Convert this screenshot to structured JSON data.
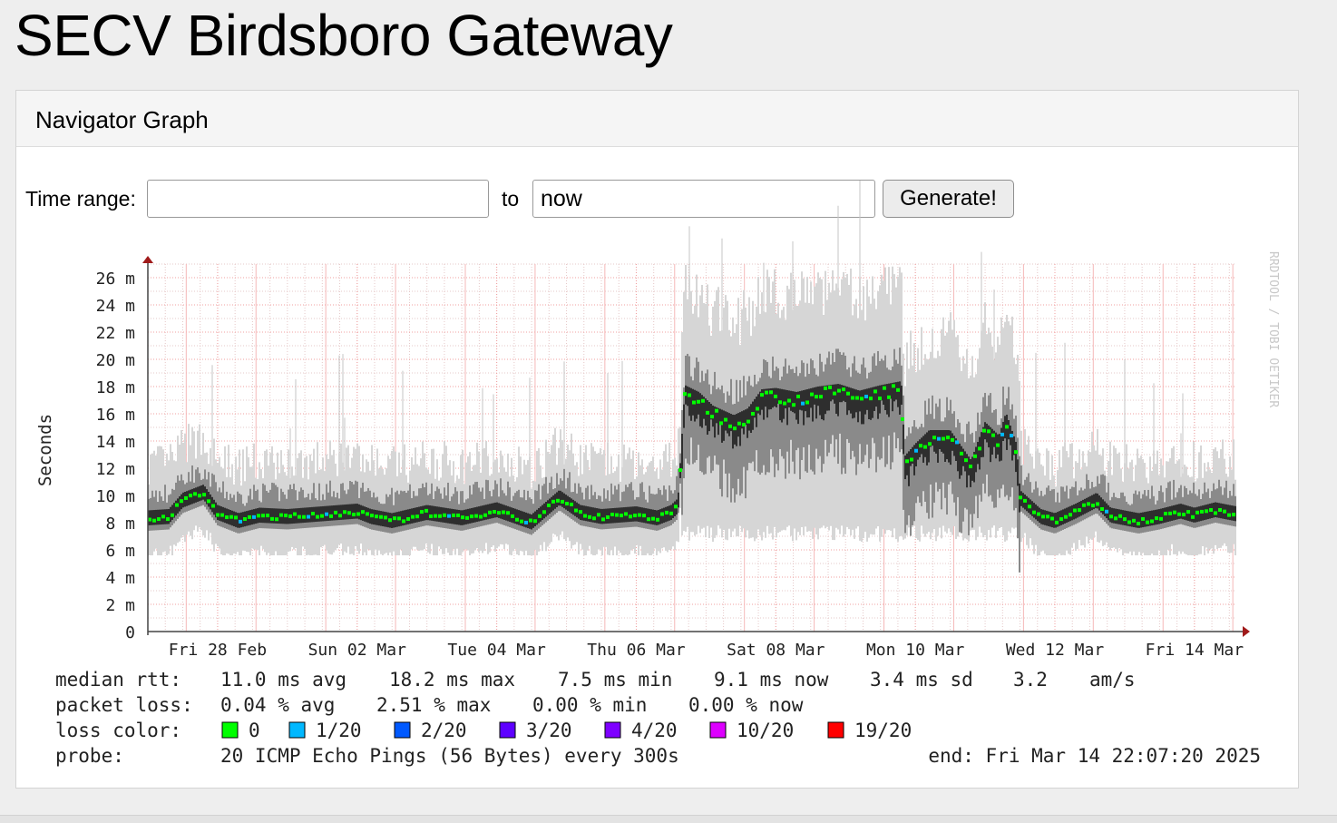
{
  "page": {
    "title": "SECV Birdsboro Gateway"
  },
  "panel": {
    "title": "Navigator Graph"
  },
  "range": {
    "label": "Time range:",
    "start_value": "",
    "to_label": "to",
    "end_value": "now",
    "button_label": "Generate!"
  },
  "chart_data": {
    "type": "line",
    "ylabel": "Seconds",
    "watermark": "RRDTOOL / TOBI OETIKER",
    "ylim": [
      0,
      27
    ],
    "yticks": [
      {
        "value": 0,
        "label": "0"
      },
      {
        "value": 2,
        "label": "2 m"
      },
      {
        "value": 4,
        "label": "4 m"
      },
      {
        "value": 6,
        "label": "6 m"
      },
      {
        "value": 8,
        "label": "8 m"
      },
      {
        "value": 10,
        "label": "10 m"
      },
      {
        "value": 12,
        "label": "12 m"
      },
      {
        "value": 14,
        "label": "14 m"
      },
      {
        "value": 16,
        "label": "16 m"
      },
      {
        "value": 18,
        "label": "18 m"
      },
      {
        "value": 20,
        "label": "20 m"
      },
      {
        "value": 22,
        "label": "22 m"
      },
      {
        "value": 24,
        "label": "24 m"
      },
      {
        "value": 26,
        "label": "26 m"
      }
    ],
    "xlim": [
      0,
      15.6
    ],
    "xticks": [
      {
        "value": 1,
        "label": "Fri 28 Feb"
      },
      {
        "value": 3,
        "label": "Sun 02 Mar"
      },
      {
        "value": 5,
        "label": "Tue 04 Mar"
      },
      {
        "value": 7,
        "label": "Thu 06 Mar"
      },
      {
        "value": 9,
        "label": "Sat 08 Mar"
      },
      {
        "value": 11,
        "label": "Mon 10 Mar"
      },
      {
        "value": 13,
        "label": "Wed 12 Mar"
      },
      {
        "value": 15,
        "label": "Fri 14 Mar"
      }
    ],
    "median_series": {
      "name": "median rtt",
      "points": [
        [
          0.0,
          8.3
        ],
        [
          0.3,
          8.4
        ],
        [
          0.5,
          9.6
        ],
        [
          0.8,
          10.2
        ],
        [
          1.0,
          8.7
        ],
        [
          1.3,
          8.1
        ],
        [
          1.6,
          8.5
        ],
        [
          2.0,
          8.4
        ],
        [
          2.5,
          8.6
        ],
        [
          3.0,
          8.8
        ],
        [
          3.2,
          8.4
        ],
        [
          3.5,
          8.1
        ],
        [
          4.0,
          8.7
        ],
        [
          4.5,
          8.3
        ],
        [
          5.0,
          8.9
        ],
        [
          5.5,
          8.0
        ],
        [
          5.9,
          9.8
        ],
        [
          6.2,
          8.7
        ],
        [
          6.5,
          8.4
        ],
        [
          7.0,
          8.6
        ],
        [
          7.3,
          8.3
        ],
        [
          7.5,
          8.7
        ],
        [
          7.6,
          9.2
        ],
        [
          7.7,
          17.5
        ],
        [
          7.9,
          17.0
        ],
        [
          8.1,
          16.0
        ],
        [
          8.4,
          15.3
        ],
        [
          8.6,
          15.8
        ],
        [
          8.8,
          17.2
        ],
        [
          9.0,
          17.3
        ],
        [
          9.3,
          17.0
        ],
        [
          9.6,
          17.4
        ],
        [
          9.9,
          17.6
        ],
        [
          10.2,
          17.1
        ],
        [
          10.5,
          17.5
        ],
        [
          10.8,
          17.8
        ],
        [
          10.85,
          12.3
        ],
        [
          11.0,
          13.2
        ],
        [
          11.2,
          14.2
        ],
        [
          11.5,
          14.2
        ],
        [
          11.8,
          12.0
        ],
        [
          12.0,
          14.8
        ],
        [
          12.2,
          13.8
        ],
        [
          12.3,
          15.5
        ],
        [
          12.45,
          13.2
        ],
        [
          12.5,
          9.8
        ],
        [
          12.8,
          8.4
        ],
        [
          13.0,
          8.1
        ],
        [
          13.3,
          8.8
        ],
        [
          13.6,
          9.6
        ],
        [
          13.8,
          8.5
        ],
        [
          14.2,
          8.1
        ],
        [
          14.5,
          8.4
        ],
        [
          14.8,
          8.8
        ],
        [
          15.0,
          8.5
        ],
        [
          15.3,
          8.9
        ],
        [
          15.6,
          8.6
        ]
      ]
    },
    "stats": {
      "median_rtt": {
        "label": "median rtt:",
        "avg": "11.0 ms avg",
        "max": "18.2 ms max",
        "min": "7.5 ms min",
        "now": "9.1 ms now",
        "sd": "3.4 ms sd",
        "am": "3.2",
        "am_unit": "am/s"
      },
      "packet_loss": {
        "label": "packet loss:",
        "avg": "0.04 % avg",
        "max": "2.51 % max",
        "min": "0.00 % min",
        "now": "0.00 % now"
      },
      "loss_color": {
        "label": "loss color:",
        "entries": [
          {
            "label": "0",
            "color": "#00ff00"
          },
          {
            "label": "1/20",
            "color": "#00b8ff"
          },
          {
            "label": "2/20",
            "color": "#0059ff"
          },
          {
            "label": "3/20",
            "color": "#5e00ff"
          },
          {
            "label": "4/20",
            "color": "#7e00ff"
          },
          {
            "label": "10/20",
            "color": "#dd00ff"
          },
          {
            "label": "19/20",
            "color": "#ff0000"
          }
        ]
      },
      "probe": {
        "label": "probe:",
        "value": "20 ICMP Echo Pings (56 Bytes) every 300s",
        "end": "end: Fri Mar 14 22:07:20 2025"
      }
    }
  }
}
